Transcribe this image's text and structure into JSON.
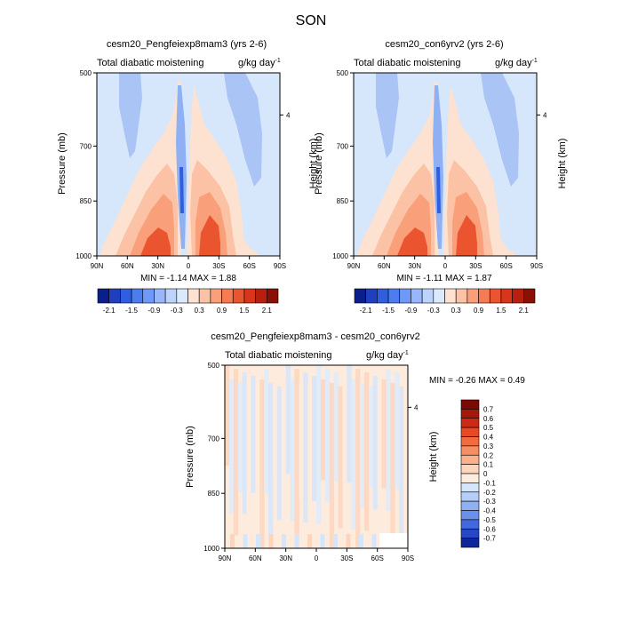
{
  "page": {
    "season_title": "SON"
  },
  "panels": [
    {
      "title": "cesm20_Pengfeiexp8mam3 (yrs 2-6)",
      "subtitle_left": "Total diabatic moistening",
      "units": "g/kg day",
      "units_exp": "-1",
      "ylabel": "Pressure (mb)",
      "ylabel_right": "Height (km)",
      "stats": "MIN = -1.14  MAX =  1.88"
    },
    {
      "title": "cesm20_con6yrv2 (yrs 2-6)",
      "subtitle_left": "Total diabatic moistening",
      "units": "g/kg day",
      "units_exp": "-1",
      "ylabel": "Pressure (mb)",
      "ylabel_right": "Height (km)",
      "stats": "MIN = -1.11  MAX =  1.87"
    },
    {
      "title": "cesm20_Pengfeiexp8mam3 - cesm20_con6yrv2",
      "subtitle_left": "Total diabatic moistening",
      "units": "g/kg day",
      "units_exp": "-1",
      "ylabel": "Pressure (mb)",
      "ylabel_right": "Height (km)",
      "stats": "MIN = -0.26  MAX =   0.49"
    }
  ],
  "colorbar_top": {
    "labels": [
      "-2.1",
      "-1.5",
      "-0.9",
      "-0.3",
      "0.3",
      "0.9",
      "1.5",
      "2.1"
    ],
    "colors": [
      "#0a1f8c",
      "#1f3fbf",
      "#2f5fe0",
      "#4c7cf0",
      "#6f99f7",
      "#97b7fa",
      "#bcd4fc",
      "#dbe9fd",
      "#fde2d1",
      "#fbc2a6",
      "#f9a07b",
      "#f47b52",
      "#ea552f",
      "#d8351a",
      "#b81f0e",
      "#8a0f05"
    ]
  },
  "colorbar_bottom": {
    "labels": [
      "0.7",
      "0.6",
      "0.5",
      "0.4",
      "0.3",
      "0.2",
      "0.1",
      "0",
      "-0.1",
      "-0.2",
      "-0.3",
      "-0.4",
      "-0.5",
      "-0.6",
      "-0.7"
    ],
    "colors": [
      "#7a0a02",
      "#a8180a",
      "#cc2a14",
      "#e64a24",
      "#f26b40",
      "#f78d62",
      "#fab08b",
      "#fdd5bd",
      "#fdebde",
      "#d5e5fa",
      "#b5cdf7",
      "#8fb0f3",
      "#6a90ee",
      "#4369e0",
      "#2648c4",
      "#0e2699"
    ]
  },
  "chart_data": [
    {
      "type": "heatmap",
      "title": "cesm20_Pengfeiexp8mam3 (yrs 2-6)",
      "x_ticks": [
        "90N",
        "60N",
        "30N",
        "0",
        "30S",
        "60S",
        "90S"
      ],
      "y_ticks": [
        "500",
        "700",
        "850",
        "1000"
      ],
      "y_right_ticks": [
        "4"
      ],
      "ylim": [
        1000,
        500
      ],
      "min": -1.14,
      "max": 1.88,
      "xlabel": "",
      "ylabel": "Pressure (mb)"
    },
    {
      "type": "heatmap",
      "title": "cesm20_con6yrv2 (yrs 2-6)",
      "x_ticks": [
        "90N",
        "60N",
        "30N",
        "0",
        "30S",
        "60S",
        "90S"
      ],
      "y_ticks": [
        "500",
        "700",
        "850",
        "1000"
      ],
      "y_right_ticks": [
        "4"
      ],
      "ylim": [
        1000,
        500
      ],
      "min": -1.11,
      "max": 1.87,
      "xlabel": "",
      "ylabel": "Pressure (mb)"
    },
    {
      "type": "heatmap",
      "title": "cesm20_Pengfeiexp8mam3 - cesm20_con6yrv2",
      "x_ticks": [
        "90N",
        "60N",
        "30N",
        "0",
        "30S",
        "60S",
        "90S"
      ],
      "y_ticks": [
        "500",
        "700",
        "850",
        "1000"
      ],
      "y_right_ticks": [
        "4"
      ],
      "ylim": [
        1000,
        500
      ],
      "min": -0.26,
      "max": 0.49,
      "xlabel": "",
      "ylabel": "Pressure (mb)"
    }
  ]
}
